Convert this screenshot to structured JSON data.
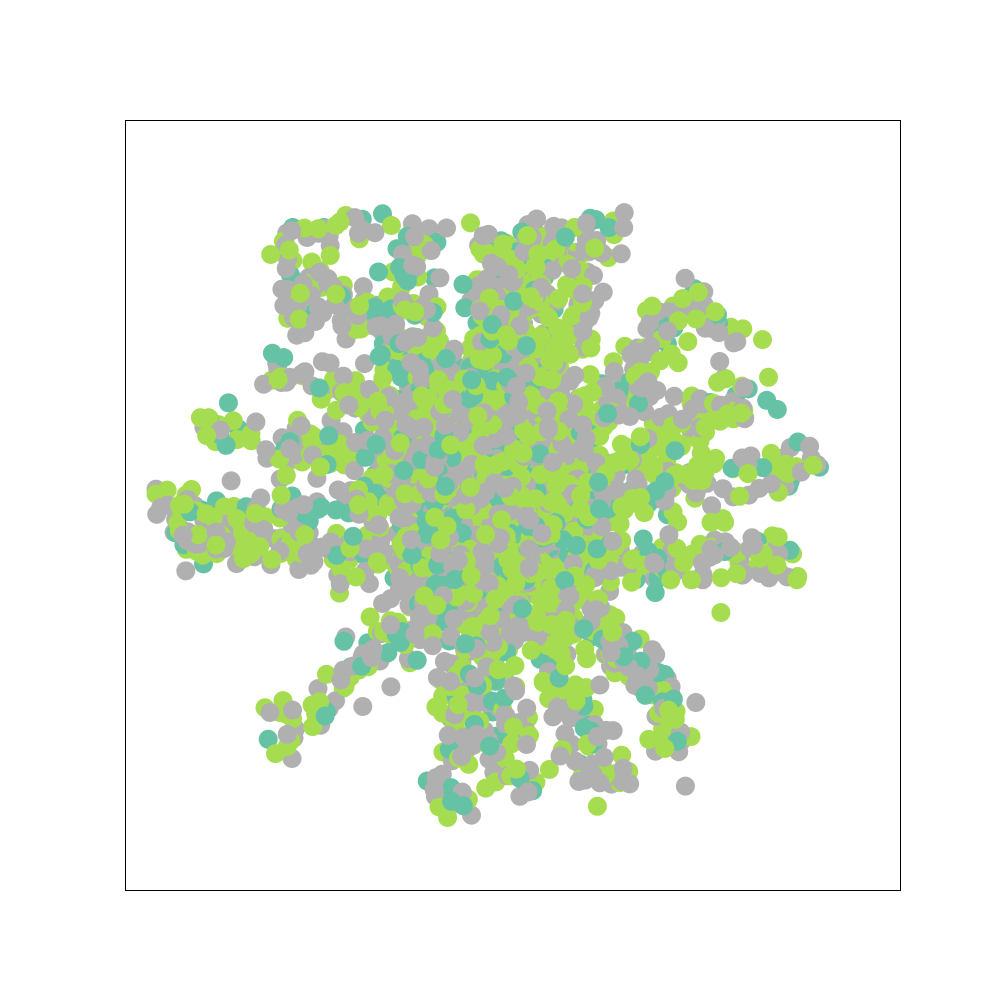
{
  "chart_data": {
    "type": "scatter",
    "title": "",
    "xlabel": "",
    "ylabel": "",
    "ticks_visible": false,
    "grid": false,
    "legend": "none",
    "xlim": [
      -50,
      50
    ],
    "ylim": [
      -50,
      50
    ],
    "series": [
      {
        "color": "#b0b0b0",
        "point_count": 1400
      },
      {
        "color": "#a6dd50",
        "point_count": 1400
      },
      {
        "color": "#66c2a5",
        "point_count": 500
      }
    ]
  }
}
